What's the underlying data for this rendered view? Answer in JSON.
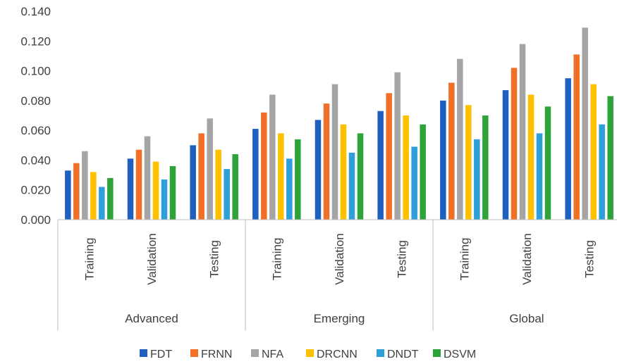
{
  "chart_data": {
    "type": "bar",
    "title": "",
    "xlabel": "",
    "ylabel": "",
    "ylim": [
      0,
      0.14
    ],
    "yticks": [
      "0.000",
      "0.020",
      "0.040",
      "0.060",
      "0.080",
      "0.100",
      "0.120",
      "0.140"
    ],
    "grid": false,
    "legend_position": "bottom",
    "groups": [
      "Advanced",
      "Emerging",
      "Global"
    ],
    "categories": [
      "Training",
      "Validation",
      "Testing",
      "Training",
      "Validation",
      "Testing",
      "Training",
      "Validation",
      "Testing"
    ],
    "series": [
      {
        "name": "FDT",
        "color": "#1F5FBF",
        "values": [
          0.033,
          0.041,
          0.05,
          0.061,
          0.067,
          0.073,
          0.08,
          0.087,
          0.095
        ]
      },
      {
        "name": "FRNN",
        "color": "#F07027",
        "values": [
          0.038,
          0.047,
          0.058,
          0.072,
          0.078,
          0.085,
          0.092,
          0.102,
          0.111
        ]
      },
      {
        "name": "NFA",
        "color": "#A5A5A5",
        "values": [
          0.046,
          0.056,
          0.068,
          0.084,
          0.091,
          0.099,
          0.108,
          0.118,
          0.129
        ]
      },
      {
        "name": "DRCNN",
        "color": "#FFC000",
        "values": [
          0.032,
          0.039,
          0.047,
          0.058,
          0.064,
          0.07,
          0.077,
          0.084,
          0.091
        ]
      },
      {
        "name": "DNDT",
        "color": "#2E9FD9",
        "values": [
          0.022,
          0.027,
          0.034,
          0.041,
          0.045,
          0.049,
          0.054,
          0.058,
          0.064
        ]
      },
      {
        "name": "DSVM",
        "color": "#2EA33A",
        "values": [
          0.028,
          0.036,
          0.044,
          0.054,
          0.058,
          0.064,
          0.07,
          0.076,
          0.083
        ]
      }
    ]
  }
}
